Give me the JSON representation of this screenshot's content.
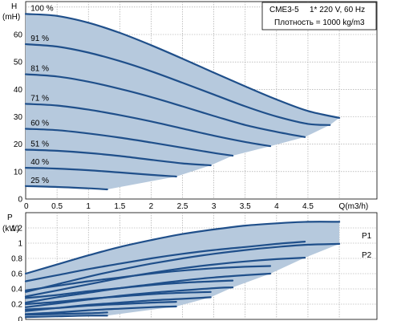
{
  "info_box": {
    "model": "CME3-5",
    "supply": "1* 220 V, 60 Hz",
    "density": "Плотность = 1000 kg/m3"
  },
  "colors": {
    "curve": "#1f4f8a",
    "area": "#b6c9dd",
    "grid": "#9a9a9a"
  },
  "chart_data": [
    {
      "type": "line",
      "name": "head-curves",
      "ylabel": "H",
      "yunit": "(mH)",
      "xlabel": "Q(m3/h)",
      "xlim": [
        0,
        5.6
      ],
      "ylim": [
        0,
        72
      ],
      "xticks": [
        "0",
        "0.5",
        "1",
        "1.5",
        "2",
        "2.5",
        "3",
        "3.5",
        "4",
        "4.5",
        "Q(m3/h)"
      ],
      "yticks": [
        "0",
        "10",
        "20",
        "30",
        "40",
        "50",
        "60"
      ],
      "grid": true,
      "series": [
        {
          "label": "100 %",
          "x": [
            0,
            0.5,
            1,
            1.5,
            2,
            2.5,
            3,
            3.5,
            4,
            4.5,
            5.0
          ],
          "y": [
            67.5,
            66.8,
            64.3,
            60.6,
            56.1,
            51.2,
            46.1,
            41.1,
            36.3,
            32.1,
            29.6
          ]
        },
        {
          "label": "91 %",
          "x": [
            0,
            0.5,
            1,
            1.5,
            2,
            2.5,
            3,
            3.5,
            4,
            4.5,
            4.85
          ],
          "y": [
            56.5,
            55.6,
            53.4,
            50.3,
            46.6,
            42.4,
            38.1,
            33.8,
            30.1,
            27.4,
            27.0
          ]
        },
        {
          "label": "81 %",
          "x": [
            0,
            0.5,
            1,
            1.5,
            2,
            2.5,
            3,
            3.5,
            4,
            4.45
          ],
          "y": [
            45.5,
            44.7,
            42.8,
            40.2,
            37.2,
            33.8,
            30.3,
            27.0,
            24.5,
            22.6
          ]
        },
        {
          "label": "71 %",
          "x": [
            0,
            0.5,
            1,
            1.5,
            2,
            2.5,
            3,
            3.5,
            3.9
          ],
          "y": [
            34.7,
            34.1,
            32.6,
            30.6,
            28.3,
            25.7,
            23.1,
            20.8,
            19.3
          ]
        },
        {
          "label": "60 %",
          "x": [
            0,
            0.5,
            1,
            1.5,
            2,
            2.5,
            3,
            3.3
          ],
          "y": [
            25.6,
            25.1,
            23.9,
            22.4,
            20.6,
            18.7,
            16.8,
            15.8
          ]
        },
        {
          "label": "51 %",
          "x": [
            0,
            0.5,
            1,
            1.5,
            2,
            2.5,
            2.95
          ],
          "y": [
            18.0,
            17.6,
            16.8,
            15.7,
            14.3,
            13.0,
            12.3
          ]
        },
        {
          "label": "40 %",
          "x": [
            0,
            0.5,
            1,
            1.5,
            2,
            2.4
          ],
          "y": [
            11.4,
            11.1,
            10.5,
            9.7,
            8.8,
            8.2
          ]
        },
        {
          "label": "25 %",
          "x": [
            0,
            0.5,
            1,
            1.3
          ],
          "y": [
            4.7,
            4.4,
            3.9,
            3.5
          ]
        }
      ],
      "envelope_x": [
        1.3,
        2.4,
        2.95,
        3.3,
        3.9,
        4.45,
        4.85,
        5.0
      ],
      "envelope_y": [
        3.5,
        8.2,
        12.3,
        15.8,
        19.3,
        22.6,
        27.0,
        29.6
      ]
    },
    {
      "type": "line",
      "name": "power-curves",
      "ylabel": "P",
      "yunit": "(kW)",
      "xlim": [
        0,
        5.6
      ],
      "ylim": [
        0,
        1.4
      ],
      "yticks": [
        "0",
        "0.2",
        "0.4",
        "0.6",
        "0.8",
        "1",
        "1.2"
      ],
      "grid": true,
      "end_labels": [
        "P1",
        "P2"
      ],
      "upper_series": [
        {
          "label": "P1",
          "x": [
            0,
            0.5,
            1,
            1.5,
            2,
            2.5,
            3,
            3.5,
            4,
            4.5,
            5.0
          ],
          "y": [
            0.6,
            0.72,
            0.84,
            0.95,
            1.04,
            1.12,
            1.18,
            1.23,
            1.26,
            1.28,
            1.28
          ]
        },
        {
          "label": "P2",
          "x": [
            0,
            0.5,
            1,
            1.5,
            2,
            2.5,
            3,
            3.5,
            4,
            4.5,
            5.0
          ],
          "y": [
            0.36,
            0.46,
            0.56,
            0.65,
            0.73,
            0.8,
            0.86,
            0.91,
            0.95,
            0.98,
            0.99
          ]
        }
      ],
      "series": [
        {
          "x": [
            0,
            0.5,
            1,
            1.5,
            2,
            2.5,
            3,
            3.5,
            4,
            4.45
          ],
          "y": [
            0.5,
            0.58,
            0.66,
            0.73,
            0.8,
            0.86,
            0.91,
            0.95,
            0.99,
            1.02
          ]
        },
        {
          "x": [
            0,
            0.5,
            1,
            1.5,
            2,
            2.5,
            3,
            3.5,
            4,
            4.45
          ],
          "y": [
            0.3,
            0.38,
            0.46,
            0.54,
            0.61,
            0.67,
            0.72,
            0.76,
            0.79,
            0.81
          ]
        },
        {
          "x": [
            0,
            0.5,
            1,
            1.5,
            2,
            2.5,
            3,
            3.5,
            3.9
          ],
          "y": [
            0.38,
            0.44,
            0.5,
            0.55,
            0.6,
            0.64,
            0.67,
            0.69,
            0.7
          ]
        },
        {
          "x": [
            0,
            0.5,
            1,
            1.5,
            2,
            2.5,
            3,
            3.5,
            3.9
          ],
          "y": [
            0.22,
            0.29,
            0.35,
            0.41,
            0.46,
            0.51,
            0.55,
            0.58,
            0.6
          ]
        },
        {
          "x": [
            0,
            0.5,
            1,
            1.5,
            2,
            2.5,
            3,
            3.3
          ],
          "y": [
            0.28,
            0.32,
            0.37,
            0.41,
            0.45,
            0.48,
            0.5,
            0.51
          ]
        },
        {
          "x": [
            0,
            0.5,
            1,
            1.5,
            2,
            2.5,
            3,
            3.3
          ],
          "y": [
            0.16,
            0.21,
            0.26,
            0.31,
            0.35,
            0.38,
            0.41,
            0.42
          ]
        },
        {
          "x": [
            0,
            0.5,
            1,
            1.5,
            2,
            2.5,
            2.95
          ],
          "y": [
            0.2,
            0.23,
            0.27,
            0.3,
            0.33,
            0.35,
            0.36
          ]
        },
        {
          "x": [
            0,
            0.5,
            1,
            1.5,
            2,
            2.5,
            2.95
          ],
          "y": [
            0.11,
            0.15,
            0.19,
            0.22,
            0.25,
            0.27,
            0.29
          ]
        },
        {
          "x": [
            0,
            0.5,
            1,
            1.5,
            2,
            2.4
          ],
          "y": [
            0.13,
            0.15,
            0.18,
            0.2,
            0.22,
            0.23
          ]
        },
        {
          "x": [
            0,
            0.5,
            1,
            1.5,
            2,
            2.4
          ],
          "y": [
            0.07,
            0.09,
            0.12,
            0.14,
            0.16,
            0.17
          ]
        },
        {
          "x": [
            0,
            0.5,
            1,
            1.3
          ],
          "y": [
            0.06,
            0.07,
            0.08,
            0.09
          ]
        },
        {
          "x": [
            0,
            0.5,
            1,
            1.3
          ],
          "y": [
            0.03,
            0.04,
            0.05,
            0.05
          ]
        }
      ]
    }
  ]
}
